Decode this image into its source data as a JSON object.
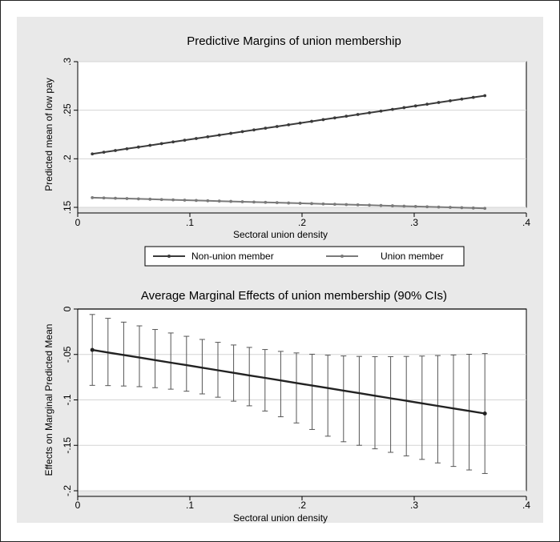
{
  "chart_data": [
    {
      "type": "line",
      "title": "Predictive Margins of union membership",
      "xlabel": "Sectoral union density",
      "ylabel": "Predicted mean of low pay",
      "xlim": [
        0,
        0.4
      ],
      "ylim": [
        0.15,
        0.3
      ],
      "x_ticks": [
        "0",
        ".1",
        ".2",
        ".3",
        ".4"
      ],
      "y_ticks": [
        ".15",
        ".2",
        ".25",
        ".3"
      ],
      "grid": true,
      "legend_position": "bottom",
      "series": [
        {
          "name": "Non-union member",
          "color": "#3a3a3a",
          "x_start": 0.013,
          "x_end": 0.363,
          "points": 35,
          "y_start": 0.205,
          "y_end": 0.265
        },
        {
          "name": "Union member",
          "color": "#7a7a7a",
          "x_start": 0.013,
          "x_end": 0.363,
          "points": 35,
          "y_start": 0.16,
          "y_end": 0.149
        }
      ]
    },
    {
      "type": "line",
      "title": "Average Marginal Effects of union membership (90% CIs)",
      "xlabel": "Sectoral union density",
      "ylabel": "Effects on Marginal Predicted Mean",
      "xlim": [
        0,
        0.4
      ],
      "ylim": [
        -0.2,
        0
      ],
      "x_ticks": [
        "0",
        ".1",
        ".2",
        ".3",
        ".4"
      ],
      "y_ticks": [
        "0",
        "-.05",
        "-.1",
        "-.15",
        "-.2"
      ],
      "grid": true,
      "reference_line": 0,
      "series": [
        {
          "name": "",
          "color": "#222222",
          "x_start": 0.013,
          "x_end": 0.363,
          "points": 26,
          "y_start": -0.045,
          "y_end": -0.115,
          "ci_lower_start": -0.084,
          "ci_lower_min_at_x": 0.15,
          "ci_lower_end": -0.181,
          "ci_upper_start": -0.006,
          "ci_upper_end": -0.049,
          "ci_upper_max_width_at": 0.15
        }
      ]
    }
  ]
}
